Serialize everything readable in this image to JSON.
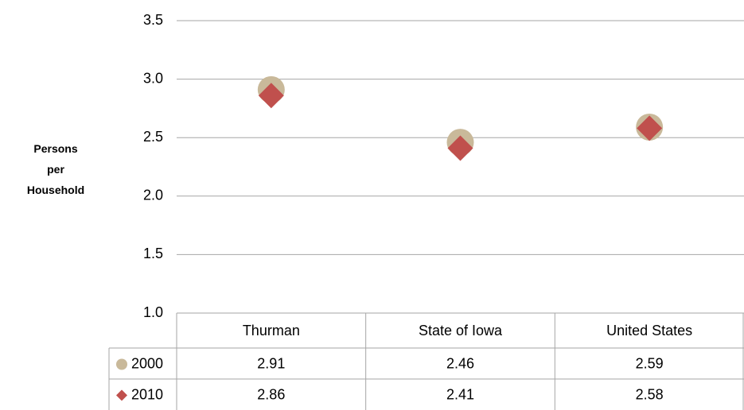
{
  "chart_data": {
    "type": "point",
    "y_label": "Persons per Household",
    "categories": [
      "Thurman",
      "State of Iowa",
      "United States"
    ],
    "series": [
      {
        "name": "2000",
        "color": "#c9b99a",
        "marker": "circle",
        "values": [
          2.91,
          2.46,
          2.59
        ]
      },
      {
        "name": "2010",
        "color": "#c0504d",
        "marker": "diamond",
        "values": [
          2.86,
          2.41,
          2.58
        ]
      }
    ],
    "ylim": [
      1.0,
      3.5
    ],
    "yticks": [
      {
        "value": 1,
        "label": "1.0"
      },
      1.5,
      {
        "value": 2,
        "label": "2.0"
      },
      2.5,
      {
        "value": 3,
        "label": "3.0"
      },
      3.5
    ],
    "grid": true,
    "data_table": true
  }
}
